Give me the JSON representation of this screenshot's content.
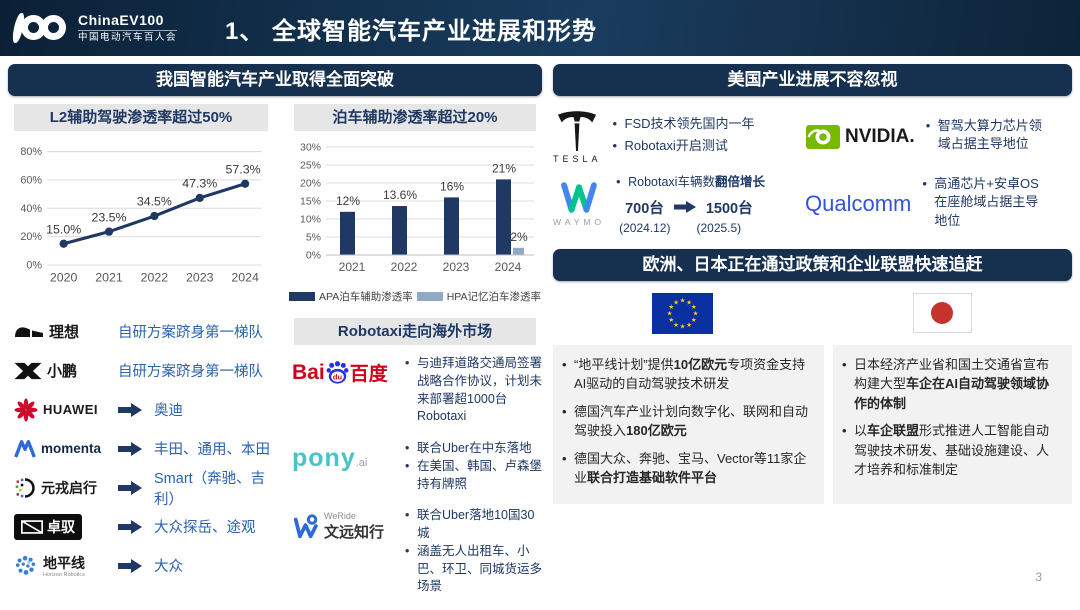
{
  "header": {
    "brand_en": "ChinaEV100",
    "brand_cn": "中国电动汽车百人会",
    "title": "1、 全球智能汽车产业进展和形势"
  },
  "chart_data": [
    {
      "type": "line",
      "title": "L2辅助驾驶渗透率超过50%",
      "categories": [
        "2020",
        "2021",
        "2022",
        "2023",
        "2024"
      ],
      "values": [
        15.0,
        23.5,
        34.5,
        47.3,
        57.3
      ],
      "labels": [
        "15.0%",
        "23.5%",
        "34.5%",
        "47.3%",
        "57.3%"
      ],
      "ylim": [
        0,
        80
      ],
      "yticks": [
        0,
        20,
        40,
        60,
        80
      ],
      "color": "#1f3864",
      "grid": "horizontal"
    },
    {
      "type": "bar",
      "title": "泊车辅助渗透率超过20%",
      "categories": [
        "2021",
        "2022",
        "2023",
        "2024"
      ],
      "series": [
        {
          "name": "APA泊车辅助渗透率",
          "values": [
            12,
            13.6,
            16,
            21
          ],
          "labels": [
            "12%",
            "13.6%",
            "16%",
            "21%"
          ],
          "color": "#1f3864"
        },
        {
          "name": "HPA记忆泊车渗透率",
          "values": [
            null,
            null,
            null,
            2
          ],
          "labels": [
            null,
            null,
            null,
            "2%"
          ],
          "color": "#8fa9c6"
        }
      ],
      "ylim": [
        0,
        30
      ],
      "yticks": [
        0,
        5,
        10,
        15,
        20,
        25,
        30
      ],
      "grid": "horizontal",
      "legend_position": "bottom"
    }
  ],
  "left": {
    "section_title": "我国智能汽车产业取得全面突破",
    "companies": [
      {
        "logo_text": "理想",
        "desc": "自研方案跻身第一梯队",
        "arrow": false
      },
      {
        "logo_text": "小鹏",
        "desc": "自研方案跻身第一梯队",
        "arrow": false
      },
      {
        "logo_text": "HUAWEI",
        "desc": "奥迪",
        "arrow": true
      },
      {
        "logo_text": "momenta",
        "desc": "丰田、通用、本田",
        "arrow": true
      },
      {
        "logo_text": "元戎启行",
        "desc": "Smart（奔驰、吉利）",
        "arrow": true
      },
      {
        "logo_text": "卓驭",
        "desc": "大众探岳、途观",
        "arrow": true
      },
      {
        "logo_text": "地平线",
        "logo_sub": "Horizon Robotics",
        "desc": "大众",
        "arrow": true
      }
    ],
    "robotaxi": {
      "title": "Robotaxi走向海外市场",
      "baidu": {
        "word_bai": "Bai",
        "word_du": "du",
        "word_cn": "百度",
        "bullets": [
          "与迪拜道路交通局签署战略合作协议，计划未来部署超1000台Robotaxi"
        ]
      },
      "pony": {
        "word": "pony",
        "suffix": ".ai",
        "bullets": [
          "联合Uber在中东落地",
          "在美国、韩国、卢森堡持有牌照"
        ]
      },
      "weride": {
        "word_en": "WeRide",
        "word_cn": "文远知行",
        "bullets": [
          "联合Uber落地10国30城",
          "涵盖无人出租车、小巴、环卫、同城货运多场景"
        ]
      }
    }
  },
  "right": {
    "us_title": "美国产业进展不容忽视",
    "tesla": {
      "wordmark": "TESLA",
      "bullets": [
        "FSD技术领先国内一年",
        "Robotaxi开启测试"
      ]
    },
    "nvidia": {
      "wordmark": "NVIDIA.",
      "bullet": "智驾大算力芯片领域占据主导地位"
    },
    "waymo": {
      "wordmark": "WAYMO",
      "line_pre": "Robotaxi车辆数",
      "line_bold": "翻倍增长",
      "from": "700台",
      "to": "1500台",
      "from_date": "(2024.12)",
      "to_date": "(2025.5)"
    },
    "qualcomm": {
      "wordmark": "Qualcomm",
      "bullet": "高通芯片+安卓OS在座舱域占据主导地位"
    },
    "eu_japan_title": "欧洲、日本正在通过政策和企业联盟快速追赶",
    "eu_bullets": [
      {
        "pre": "“地平线计划”提供",
        "bold": "10亿欧元",
        "post": "专项资金支持AI驱动的自动驾驶技术研发"
      },
      {
        "pre": "德国汽车产业计划向数字化、联网和自动驾驶投入",
        "bold": "180亿欧元",
        "post": ""
      },
      {
        "pre": "德国大众、奔驰、宝马、Vector等11家企业",
        "bold": "联合打造基础软件平台",
        "post": ""
      }
    ],
    "japan_bullets": [
      {
        "pre": "日本经济产业省和国土交通省宣布构建大型",
        "bold": "车企在AI自动驾驶领域协作的体制",
        "post": ""
      },
      {
        "pre": "以",
        "bold": "车企联盟",
        "post": "形式推进人工智能自动驾驶技术研发、基础设施建设、人才培养和标准制定"
      }
    ]
  },
  "page_number": "3",
  "colors": {
    "header_navy": "#16304f",
    "chart_navy": "#1f3864",
    "hpa_light_blue": "#8fa9c6",
    "desc_blue": "#2b62b0",
    "subtitle_gray": "#e7e6e6"
  }
}
